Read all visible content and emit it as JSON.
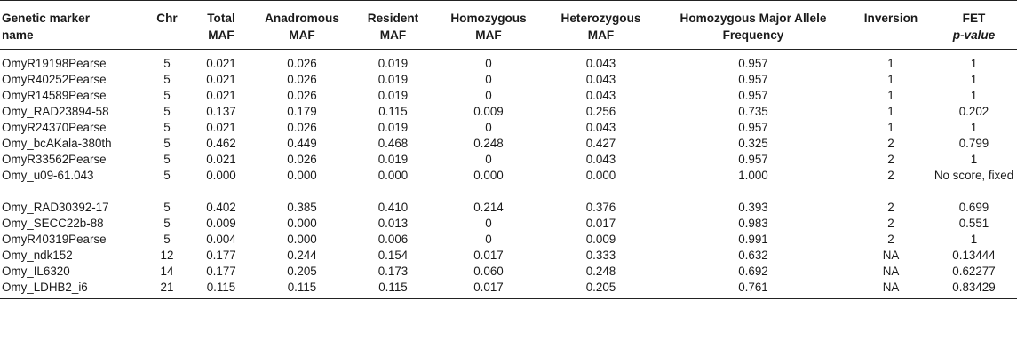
{
  "table": {
    "headers": [
      {
        "line1": "Genetic marker",
        "line2": "name"
      },
      {
        "line1": "Chr",
        "line2": ""
      },
      {
        "line1": "Total",
        "line2": "MAF"
      },
      {
        "line1": "Anadromous",
        "line2": "MAF"
      },
      {
        "line1": "Resident",
        "line2": "MAF"
      },
      {
        "line1": "Homozygous",
        "line2": "MAF"
      },
      {
        "line1": "Heterozygous",
        "line2": "MAF"
      },
      {
        "line1": "Homozygous Major Allele",
        "line2": "Frequency"
      },
      {
        "line1": "Inversion",
        "line2": ""
      },
      {
        "line1": "FET",
        "line2": "p-value"
      }
    ],
    "rows": [
      [
        "OmyR19198Pearse",
        "5",
        "0.021",
        "0.026",
        "0.019",
        "0",
        "0.043",
        "0.957",
        "1",
        "1"
      ],
      [
        "OmyR40252Pearse",
        "5",
        "0.021",
        "0.026",
        "0.019",
        "0",
        "0.043",
        "0.957",
        "1",
        "1"
      ],
      [
        "OmyR14589Pearse",
        "5",
        "0.021",
        "0.026",
        "0.019",
        "0",
        "0.043",
        "0.957",
        "1",
        "1"
      ],
      [
        "Omy_RAD23894-58",
        "5",
        "0.137",
        "0.179",
        "0.115",
        "0.009",
        "0.256",
        "0.735",
        "1",
        "0.202"
      ],
      [
        "OmyR24370Pearse",
        "5",
        "0.021",
        "0.026",
        "0.019",
        "0",
        "0.043",
        "0.957",
        "1",
        "1"
      ],
      [
        "Omy_bcAKala-380th",
        "5",
        "0.462",
        "0.449",
        "0.468",
        "0.248",
        "0.427",
        "0.325",
        "2",
        "0.799"
      ],
      [
        "OmyR33562Pearse",
        "5",
        "0.021",
        "0.026",
        "0.019",
        "0",
        "0.043",
        "0.957",
        "2",
        "1"
      ],
      [
        "Omy_u09-61.043",
        "5",
        "0.000",
        "0.000",
        "0.000",
        "0.000",
        "0.000",
        "1.000",
        "2",
        "No score, fixed"
      ],
      [
        "Omy_RAD30392-17",
        "5",
        "0.402",
        "0.385",
        "0.410",
        "0.214",
        "0.376",
        "0.393",
        "2",
        "0.699"
      ],
      [
        "Omy_SECC22b-88",
        "5",
        "0.009",
        "0.000",
        "0.013",
        "0",
        "0.017",
        "0.983",
        "2",
        "0.551"
      ],
      [
        "OmyR40319Pearse",
        "5",
        "0.004",
        "0.000",
        "0.006",
        "0",
        "0.009",
        "0.991",
        "2",
        "1"
      ],
      [
        "Omy_ndk152",
        "12",
        "0.177",
        "0.244",
        "0.154",
        "0.017",
        "0.333",
        "0.632",
        "NA",
        "0.13444"
      ],
      [
        "Omy_IL6320",
        "14",
        "0.177",
        "0.205",
        "0.173",
        "0.060",
        "0.248",
        "0.692",
        "NA",
        "0.62277"
      ],
      [
        "Omy_LDHB2_i6",
        "21",
        "0.115",
        "0.115",
        "0.115",
        "0.017",
        "0.205",
        "0.761",
        "NA",
        "0.83429"
      ]
    ]
  }
}
